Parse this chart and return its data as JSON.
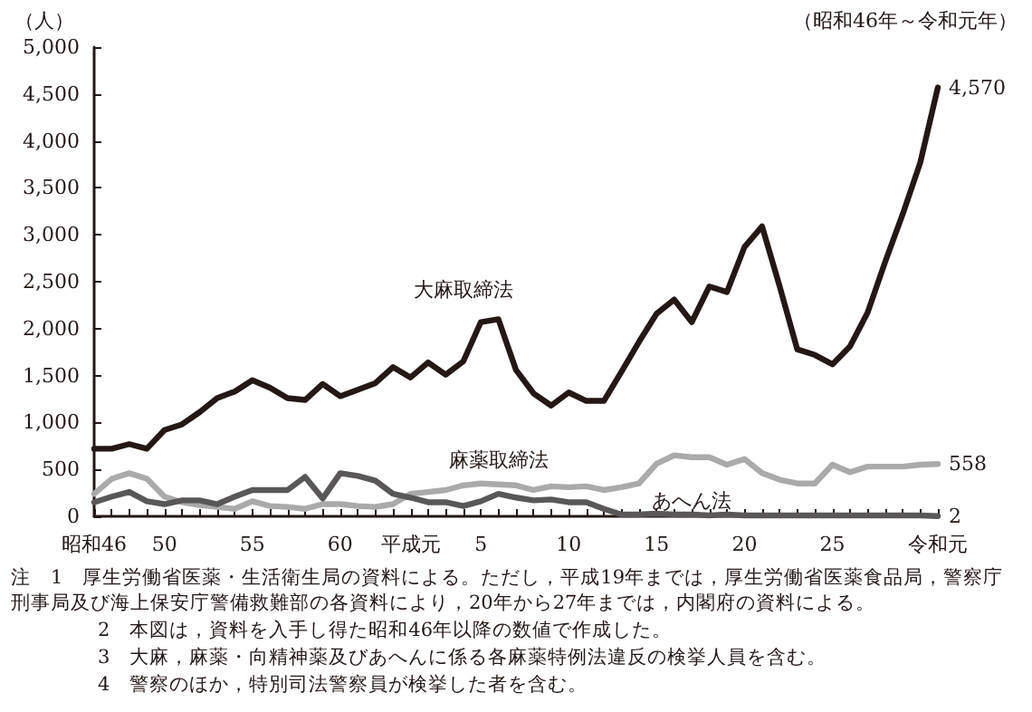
{
  "chart_data": {
    "type": "line",
    "ylabel": "（人）",
    "subtitle": "（昭和46年～令和元年）",
    "categories": [
      "昭和46",
      null,
      null,
      null,
      "50",
      null,
      null,
      null,
      null,
      "55",
      null,
      null,
      null,
      null,
      "60",
      null,
      null,
      null,
      "平成元",
      null,
      null,
      null,
      "5",
      null,
      null,
      null,
      null,
      "10",
      null,
      null,
      null,
      null,
      "15",
      null,
      null,
      null,
      null,
      "20",
      null,
      null,
      null,
      null,
      "25",
      null,
      null,
      null,
      null,
      null,
      "令和元"
    ],
    "series": [
      {
        "name": "大麻取締法",
        "color": "#231815",
        "values": [
          720,
          720,
          770,
          720,
          920,
          980,
          1110,
          1260,
          1330,
          1450,
          1370,
          1260,
          1240,
          1410,
          1280,
          1350,
          1420,
          1590,
          1480,
          1640,
          1510,
          1650,
          2070,
          2100,
          1560,
          1310,
          1180,
          1320,
          1230,
          1230,
          1540,
          1860,
          2160,
          2310,
          2070,
          2450,
          2390,
          2870,
          3090,
          2450,
          1780,
          1720,
          1620,
          1810,
          2170,
          2710,
          3220,
          3770,
          4570
        ],
        "value_labels": [
          null,
          null,
          null,
          null,
          null,
          null,
          null,
          null,
          null,
          null,
          null,
          null,
          null,
          null,
          null,
          null,
          null,
          null,
          null,
          null,
          null,
          null,
          null,
          null,
          null,
          null,
          null,
          null,
          null,
          null,
          null,
          null,
          null,
          null,
          null,
          null,
          null,
          null,
          null,
          null,
          null,
          null,
          null,
          null,
          null,
          null,
          null,
          null,
          "4,570"
        ]
      },
      {
        "name": "麻薬取締法",
        "color": "#aaaaaa",
        "values": [
          240,
          400,
          460,
          400,
          210,
          150,
          120,
          100,
          80,
          160,
          110,
          100,
          80,
          130,
          130,
          110,
          100,
          130,
          240,
          260,
          280,
          330,
          350,
          340,
          330,
          280,
          320,
          310,
          320,
          280,
          310,
          350,
          560,
          650,
          630,
          630,
          550,
          610,
          460,
          390,
          350,
          350,
          550,
          470,
          530,
          530,
          530,
          550,
          558
        ],
        "value_labels": [
          null,
          null,
          null,
          null,
          null,
          null,
          null,
          null,
          null,
          null,
          null,
          null,
          null,
          null,
          null,
          null,
          null,
          null,
          null,
          null,
          null,
          null,
          null,
          null,
          null,
          null,
          null,
          null,
          null,
          null,
          null,
          null,
          null,
          null,
          null,
          null,
          null,
          null,
          null,
          null,
          null,
          null,
          null,
          null,
          null,
          null,
          null,
          null,
          "558"
        ]
      },
      {
        "name": "あへん法",
        "color": "#595757",
        "values": [
          150,
          210,
          260,
          160,
          130,
          170,
          170,
          130,
          210,
          280,
          280,
          280,
          420,
          190,
          460,
          430,
          380,
          240,
          200,
          150,
          150,
          110,
          160,
          240,
          200,
          170,
          180,
          150,
          150,
          80,
          20,
          20,
          30,
          20,
          20,
          10,
          20,
          10,
          10,
          10,
          10,
          10,
          10,
          10,
          10,
          10,
          10,
          10,
          2
        ],
        "value_labels": [
          null,
          null,
          null,
          null,
          null,
          null,
          null,
          null,
          null,
          null,
          null,
          null,
          null,
          null,
          null,
          null,
          null,
          null,
          null,
          null,
          null,
          null,
          null,
          null,
          null,
          null,
          null,
          null,
          null,
          null,
          null,
          null,
          null,
          null,
          null,
          null,
          null,
          null,
          null,
          null,
          null,
          null,
          null,
          null,
          null,
          null,
          null,
          null,
          "2"
        ]
      }
    ],
    "ylim": [
      0,
      5000
    ],
    "yticks": [
      0,
      {
        "value": 500,
        "label": "500"
      },
      {
        "value": 1000,
        "label": "1,000"
      },
      {
        "value": 1500,
        "label": "1,500"
      },
      {
        "value": 2000,
        "label": "2,000"
      },
      {
        "value": 2500,
        "label": "2,500"
      },
      {
        "value": 3000,
        "label": "3,000"
      },
      {
        "value": 3500,
        "label": "3,500"
      },
      {
        "value": 4000,
        "label": "4,000"
      },
      {
        "value": 4500,
        "label": "4,500"
      },
      {
        "value": 5000,
        "label": "5,000"
      }
    ],
    "grid": false,
    "legend": false,
    "marker": "none",
    "line_style": "solid",
    "annotations": [
      "注　1　厚生労働省医薬・生活衛生局の資料による。ただし，平成19年までは，厚生労働省医薬食品局，警察庁刑事局及び海上保安庁警備救難部の各資料により，20年から27年までは，内閣府の資料による。",
      "2　本図は，資料を入手し得た昭和46年以降の数値で作成した。",
      "3　大麻，麻薬・向精神薬及びあへんに係る各麻薬特例法違反の検挙人員を含む。",
      "4　警察のほか，特別司法警察員が検挙した者を含む。"
    ]
  }
}
